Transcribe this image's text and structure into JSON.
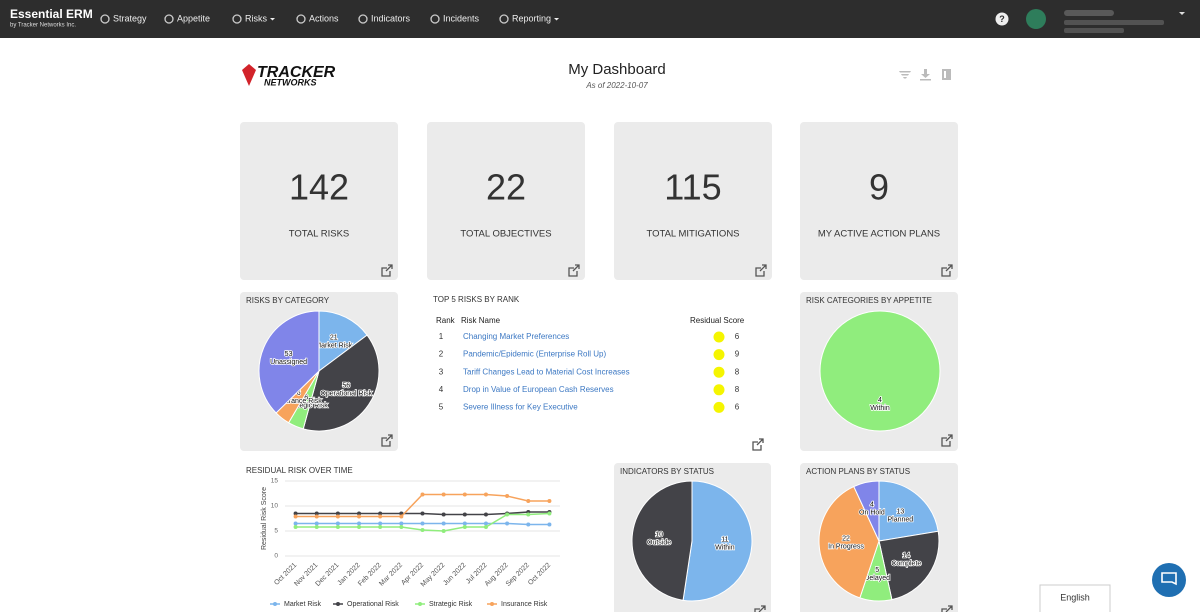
{
  "nav": {
    "brand": "Essential ERM",
    "brand_sub": "by Tracker Networks Inc.",
    "items": [
      "Strategy",
      "Appetite",
      "Risks",
      "Actions",
      "Indicators",
      "Incidents",
      "Reporting"
    ],
    "help": "?"
  },
  "header": {
    "logo_top": "TRACKER",
    "logo_bottom": "NETWORKS",
    "title": "My Dashboard",
    "subtitle": "As of 2022-10-07"
  },
  "kpis": [
    {
      "value": 142,
      "label": "TOTAL RISKS"
    },
    {
      "value": 22,
      "label": "TOTAL OBJECTIVES"
    },
    {
      "value": 115,
      "label": "TOTAL MITIGATIONS"
    },
    {
      "value": 9,
      "label": "MY ACTIVE ACTION PLANS"
    }
  ],
  "table": {
    "title": "TOP 5 RISKS BY RANK",
    "columns": [
      "Rank",
      "Risk Name",
      "Residual Score"
    ],
    "rows": [
      [
        1,
        "Changing Market Preferences",
        6
      ],
      [
        2,
        "Pandemic/Epidemic (Enterprise Roll Up)",
        9
      ],
      [
        3,
        "Tariff Changes Lead to Material Cost Increases",
        8
      ],
      [
        4,
        "Drop in Value of European Cash Reserves",
        8
      ],
      [
        5,
        "Severe Illness for Key Executive",
        6
      ]
    ]
  },
  "chart_data": [
    {
      "type": "pie",
      "title": "RISKS BY CATEGORY",
      "categories": [
        "Market Risk",
        "Operational Risk",
        "Strategic Risk",
        "Insurance Risk",
        "Unassigned"
      ],
      "values": [
        21,
        56,
        6,
        6,
        53
      ],
      "colors": [
        "#7cb5ec",
        "#434348",
        "#90ed7d",
        "#f7a35c",
        "#8085e9"
      ]
    },
    {
      "type": "pie",
      "title": "RISK CATEGORIES BY APPETITE",
      "categories": [
        "Within"
      ],
      "values": [
        4
      ],
      "colors": [
        "#90ed7d"
      ]
    },
    {
      "type": "line",
      "title": "RESIDUAL RISK OVER TIME",
      "y_label": "Residual Risk Score",
      "categories": [
        "Oct 2021",
        "Nov 2021",
        "Dec 2021",
        "Jan 2022",
        "Feb 2022",
        "Mar 2022",
        "Apr 2022",
        "May 2022",
        "Jun 2022",
        "Jul 2022",
        "Aug 2022",
        "Sep 2022",
        "Oct 2022"
      ],
      "ylim": [
        0,
        15
      ],
      "yticks": [
        0,
        5,
        10,
        15
      ],
      "grid": true,
      "series": [
        {
          "name": "Market Risk",
          "color": "#7cb5ec",
          "values": [
            6.5,
            6.5,
            6.5,
            6.5,
            6.5,
            6.5,
            6.5,
            6.5,
            6.5,
            6.5,
            6.5,
            6.3,
            6.3
          ]
        },
        {
          "name": "Operational Risk",
          "color": "#434348",
          "values": [
            8.5,
            8.5,
            8.5,
            8.5,
            8.5,
            8.5,
            8.5,
            8.3,
            8.3,
            8.3,
            8.5,
            8.8,
            8.8
          ]
        },
        {
          "name": "Strategic Risk",
          "color": "#90ed7d",
          "values": [
            5.8,
            5.8,
            5.8,
            5.8,
            5.8,
            5.8,
            5.2,
            5,
            5.8,
            5.8,
            8.3,
            8.3,
            8.5
          ]
        },
        {
          "name": "Insurance Risk",
          "color": "#f7a35c",
          "values": [
            7.9,
            7.9,
            7.9,
            7.9,
            7.9,
            7.9,
            12.3,
            12.3,
            12.3,
            12.3,
            12,
            11,
            11
          ]
        }
      ]
    },
    {
      "type": "pie",
      "title": "INDICATORS BY STATUS",
      "categories": [
        "Within",
        "Outside"
      ],
      "values": [
        11,
        10
      ],
      "colors": [
        "#7cb5ec",
        "#434348"
      ]
    },
    {
      "type": "pie",
      "title": "ACTION PLANS BY STATUS",
      "categories": [
        "Planned",
        "Complete",
        "Delayed",
        "In Progress",
        "On Hold"
      ],
      "values": [
        13,
        14,
        5,
        22,
        4
      ],
      "colors": [
        "#7cb5ec",
        "#434348",
        "#90ed7d",
        "#f7a35c",
        "#8085e9"
      ]
    }
  ],
  "footer": {
    "language": "English"
  }
}
